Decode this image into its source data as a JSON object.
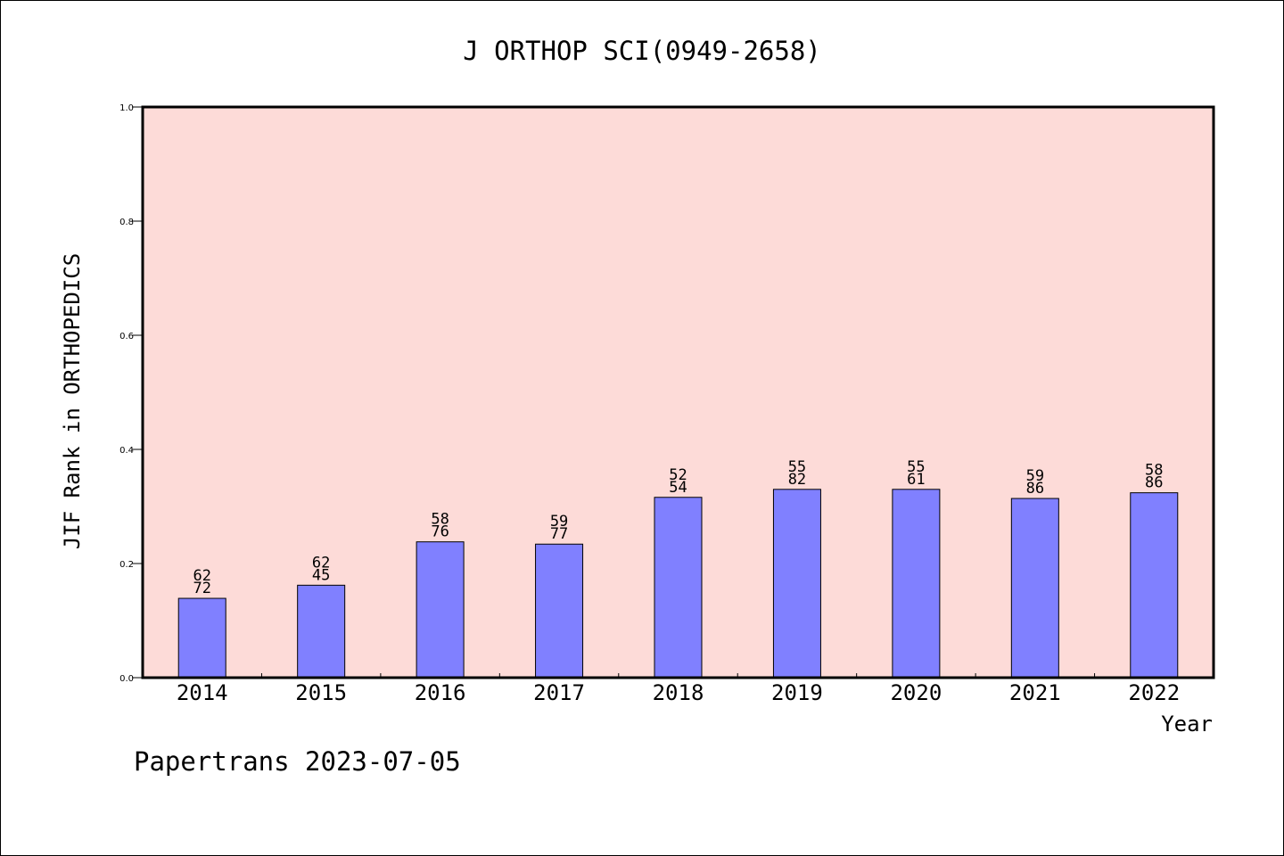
{
  "chart_data": {
    "type": "bar",
    "title": "J ORTHOP SCI(0949-2658)",
    "xlabel": "Year",
    "ylabel": "JIF Rank in ORTHOPEDICS",
    "ylim": [
      0.0,
      1.0
    ],
    "yticks": [
      "0.0",
      "0.2",
      "0.4",
      "0.6",
      "0.8",
      "1.0"
    ],
    "categories": [
      "2014",
      "2015",
      "2016",
      "2017",
      "2018",
      "2019",
      "2020",
      "2021",
      "2022"
    ],
    "values": [
      0.139,
      0.162,
      0.238,
      0.234,
      0.316,
      0.33,
      0.33,
      0.314,
      0.324
    ],
    "labels_top": [
      "62",
      "62",
      "58",
      "59",
      "52",
      "55",
      "55",
      "59",
      "58"
    ],
    "labels_bottom": [
      "72",
      "45",
      "76",
      "77",
      "54",
      "82",
      "61",
      "86",
      "86"
    ],
    "grid": false,
    "colors": {
      "plot_background": "#fddbd8",
      "bar_fill": "#8080ff",
      "bar_edge": "#000000"
    }
  },
  "footer": {
    "credit": "Papertrans 2023-07-05"
  }
}
